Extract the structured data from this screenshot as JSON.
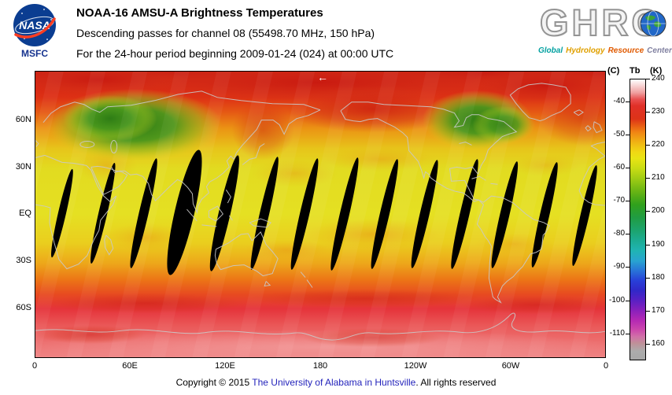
{
  "header": {
    "nasa_logo_text": "NASA",
    "msfc_label": "MSFC",
    "title": "NOAA-16 AMSU-A Brightness Temperatures",
    "subtitle1": "Descending passes for channel 08 (55498.70 MHz, 150 hPa)",
    "subtitle2": "For the 24-hour period beginning 2009-01-24 (024) at 00:00 UTC",
    "ghrc_logo": "GHRC",
    "ghrc_tagline": [
      {
        "text": "Global",
        "color": "#00a0a0"
      },
      {
        "text": "Hydrology",
        "color": "#e0a000"
      },
      {
        "text": "Resource",
        "color": "#e05a00"
      },
      {
        "text": "Center",
        "color": "#8080a0"
      }
    ]
  },
  "map": {
    "direction_arrow": "←",
    "lat_labels": [
      "60N",
      "30N",
      "EQ",
      "30S",
      "60S"
    ],
    "lon_labels": [
      "0",
      "60E",
      "120E",
      "180",
      "120W",
      "60W",
      "0"
    ]
  },
  "colorbar": {
    "title_c": "(C)",
    "title_tb": "Tb",
    "title_k": "(K)",
    "kelvin_labels": [
      240,
      230,
      220,
      210,
      200,
      190,
      180,
      170,
      160
    ],
    "celsius_labels": [
      -40,
      -50,
      -60,
      -70,
      -80,
      -90,
      -100,
      -110
    ],
    "range_k": [
      155,
      240
    ],
    "gradient": [
      {
        "p": 0.0,
        "c": "#ffffff"
      },
      {
        "p": 0.02,
        "c": "#f8d8d8"
      },
      {
        "p": 0.047,
        "c": "#f0a0a0"
      },
      {
        "p": 0.071,
        "c": "#e85050"
      },
      {
        "p": 0.094,
        "c": "#e03028"
      },
      {
        "p": 0.141,
        "c": "#dd3318"
      },
      {
        "p": 0.165,
        "c": "#e85c14"
      },
      {
        "p": 0.188,
        "c": "#f08414"
      },
      {
        "p": 0.212,
        "c": "#f0a414"
      },
      {
        "p": 0.235,
        "c": "#f0c014"
      },
      {
        "p": 0.259,
        "c": "#f0d814"
      },
      {
        "p": 0.282,
        "c": "#e8e414"
      },
      {
        "p": 0.318,
        "c": "#c8dc14"
      },
      {
        "p": 0.353,
        "c": "#a0cc14"
      },
      {
        "p": 0.4,
        "c": "#68b414"
      },
      {
        "p": 0.447,
        "c": "#30a01c"
      },
      {
        "p": 0.494,
        "c": "#209c44"
      },
      {
        "p": 0.541,
        "c": "#1ca470"
      },
      {
        "p": 0.576,
        "c": "#1cac94"
      },
      {
        "p": 0.612,
        "c": "#20b4b4"
      },
      {
        "p": 0.647,
        "c": "#28a4d0"
      },
      {
        "p": 0.682,
        "c": "#2874d8"
      },
      {
        "p": 0.718,
        "c": "#2840d8"
      },
      {
        "p": 0.753,
        "c": "#3028c8"
      },
      {
        "p": 0.788,
        "c": "#5820c4"
      },
      {
        "p": 0.824,
        "c": "#8820bc"
      },
      {
        "p": 0.859,
        "c": "#b428b4"
      },
      {
        "p": 0.894,
        "c": "#cc48ac"
      },
      {
        "p": 0.918,
        "c": "#d070a8"
      },
      {
        "p": 0.941,
        "c": "#c09098"
      },
      {
        "p": 0.97,
        "c": "#acacac"
      },
      {
        "p": 1.0,
        "c": "#a8a8a8"
      }
    ]
  },
  "footer": {
    "pre": "Copyright © 2015 ",
    "link": "The University of Alabama in Huntsville",
    "post": ". All rights reserved"
  },
  "chart_data": {
    "type": "heatmap",
    "title": "NOAA-16 AMSU-A Brightness Temperatures",
    "subtitle": "Descending passes for channel 08 (55498.70 MHz, 150 hPa)",
    "period": "24-hour period beginning 2009-01-24 (024) at 00:00 UTC",
    "variable": "Brightness temperature Tb",
    "units": [
      "K",
      "C"
    ],
    "projection": "equirectangular world map, longitude 0E to 360E left-to-right, latitude 90N top to 90S bottom",
    "x_ticks": [
      "0",
      "60E",
      "120E",
      "180",
      "120W",
      "60W",
      "0"
    ],
    "y_ticks": [
      "60N",
      "30N",
      "EQ",
      "30S",
      "60S"
    ],
    "color_scale_range_k": [
      155,
      240
    ],
    "color_scale_ticks_k": [
      240,
      230,
      220,
      210,
      200,
      190,
      180,
      170,
      160
    ],
    "color_scale_ticks_c": [
      -40,
      -50,
      -60,
      -70,
      -80,
      -90,
      -100,
      -110
    ],
    "zonal_mean_tb_k": [
      {
        "lat": "80N",
        "tb": 230
      },
      {
        "lat": "60N",
        "tb": 216
      },
      {
        "lat": "40N",
        "tb": 215
      },
      {
        "lat": "20N",
        "tb": 217
      },
      {
        "lat": "EQ",
        "tb": 217
      },
      {
        "lat": "20S",
        "tb": 217
      },
      {
        "lat": "35S",
        "tb": 220
      },
      {
        "lat": "50S",
        "tb": 226
      },
      {
        "lat": "65S",
        "tb": 231
      },
      {
        "lat": "80S",
        "tb": 234
      }
    ],
    "features": [
      {
        "region": "Arctic band 70-90N",
        "tb_k": "227-233 (red)"
      },
      {
        "region": "North Europe / West Russia near 60N",
        "tb_k": "203-210 (green minimum)"
      },
      {
        "region": "Northeast North America / Greenland near 60N",
        "tb_k": "204-210 (green minimum)"
      },
      {
        "region": "Tropics 30N-30S",
        "tb_k": "215-218 (yellow with orange patches)"
      },
      {
        "region": "Southern ocean 45-65S",
        "tb_k": "226-232 (orange-red)"
      },
      {
        "region": "Antarctica",
        "tb_k": "232-238 (light salmon red)"
      }
    ],
    "no_data": "~14 lens-shaped black inter-orbit gaps tilted NE-SW between about 35N and 40S"
  }
}
